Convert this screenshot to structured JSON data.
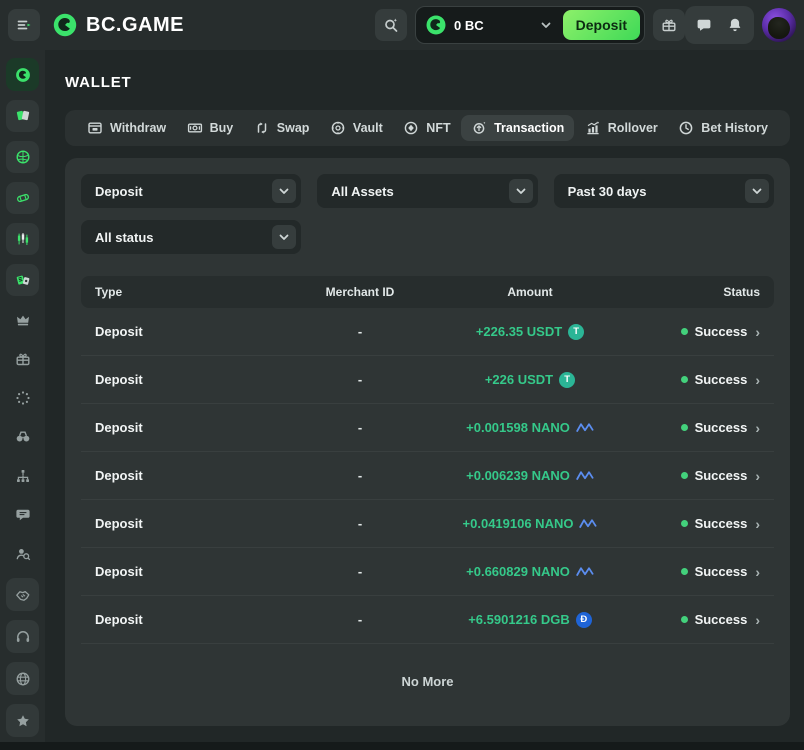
{
  "header": {
    "logo_text": "BC.GAME",
    "balance_text": "0 BC",
    "deposit_label": "Deposit"
  },
  "wallet": {
    "title": "WALLET"
  },
  "tabs": [
    {
      "label": "Withdraw",
      "icon": "wallet-icon"
    },
    {
      "label": "Buy",
      "icon": "banknote-icon"
    },
    {
      "label": "Swap",
      "icon": "swap-icon"
    },
    {
      "label": "Vault",
      "icon": "vault-icon"
    },
    {
      "label": "NFT",
      "icon": "nft-icon"
    },
    {
      "label": "Transaction",
      "icon": "transaction-icon",
      "active": true
    },
    {
      "label": "Rollover",
      "icon": "rollover-icon"
    },
    {
      "label": "Bet History",
      "icon": "clock-icon"
    }
  ],
  "filters": [
    {
      "name": "transaction-type-select",
      "value": "Deposit"
    },
    {
      "name": "asset-select",
      "value": "All Assets"
    },
    {
      "name": "date-range-select",
      "value": "Past 30 days"
    },
    {
      "name": "status-select",
      "value": "All status"
    }
  ],
  "table": {
    "columns": [
      "Type",
      "Merchant ID",
      "Amount",
      "Status"
    ],
    "rows": [
      {
        "type": "Deposit",
        "merchant_id": "-",
        "amount": "+226.35 USDT",
        "coin": "USDT",
        "coin_icon": "usdt-coin-icon",
        "status": "Success"
      },
      {
        "type": "Deposit",
        "merchant_id": "-",
        "amount": "+226 USDT",
        "coin": "USDT",
        "coin_icon": "usdt-coin-icon",
        "status": "Success"
      },
      {
        "type": "Deposit",
        "merchant_id": "-",
        "amount": "+0.001598 NANO",
        "coin": "NANO",
        "coin_icon": "nano-coin-icon",
        "status": "Success"
      },
      {
        "type": "Deposit",
        "merchant_id": "-",
        "amount": "+0.006239 NANO",
        "coin": "NANO",
        "coin_icon": "nano-coin-icon",
        "status": "Success"
      },
      {
        "type": "Deposit",
        "merchant_id": "-",
        "amount": "+0.0419106 NANO",
        "coin": "NANO",
        "coin_icon": "nano-coin-icon",
        "status": "Success"
      },
      {
        "type": "Deposit",
        "merchant_id": "-",
        "amount": "+0.660829 NANO",
        "coin": "NANO",
        "coin_icon": "nano-coin-icon",
        "status": "Success"
      },
      {
        "type": "Deposit",
        "merchant_id": "-",
        "amount": "+6.5901216 DGB",
        "coin": "DGB",
        "coin_icon": "dgb-coin-icon",
        "status": "Success"
      }
    ],
    "empty_text": "No More"
  },
  "sidebar": {
    "items": [
      {
        "name": "casino-home",
        "icon": "bc-logo-icon",
        "active": true
      },
      {
        "name": "casino",
        "icon": "casino-cards-icon",
        "tiled": true
      },
      {
        "name": "sports",
        "icon": "sports-icon",
        "tiled": true
      },
      {
        "name": "racing",
        "icon": "racing-icon",
        "tiled": true
      },
      {
        "name": "trading",
        "icon": "trading-icon",
        "tiled": true
      },
      {
        "name": "lottery",
        "icon": "lottery-icon",
        "tiled": true
      },
      {
        "name": "vip",
        "icon": "crown-icon"
      },
      {
        "name": "bonus",
        "icon": "gift-icon"
      },
      {
        "name": "spin",
        "icon": "spinner-icon"
      },
      {
        "name": "explore",
        "icon": "binoculars-icon"
      },
      {
        "name": "affiliate",
        "icon": "network-icon"
      },
      {
        "name": "forum",
        "icon": "forum-icon"
      },
      {
        "name": "refer",
        "icon": "user-search-icon"
      },
      {
        "name": "partnership",
        "icon": "handshake-icon",
        "boxed": true
      },
      {
        "name": "support",
        "icon": "headset-icon",
        "boxed": true
      },
      {
        "name": "language",
        "icon": "globe-icon",
        "boxed": true
      },
      {
        "name": "favorites",
        "icon": "star-icon",
        "boxed": true
      }
    ]
  },
  "colors": {
    "accent_green": "#3be26b",
    "amount_green": "#35c98a",
    "success_green": "#43d17c",
    "deposit_button_green": "#5fe35f",
    "usdt_teal": "#2bb596",
    "dgb_blue": "#1f64d6",
    "nano_blue": "#5b8def",
    "avatar_purple": "#6a35c9",
    "panel_bg": "#2f3535",
    "page_bg": "#212727"
  }
}
